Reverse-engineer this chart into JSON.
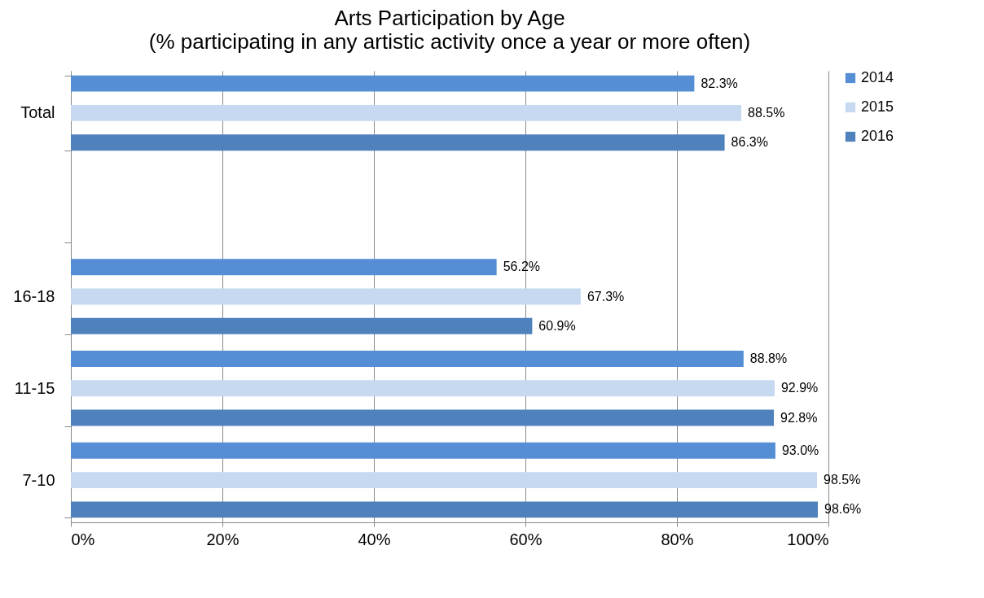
{
  "chart_data": {
    "type": "bar",
    "orientation": "horizontal",
    "title": "Arts Participation by Age",
    "subtitle": "(% participating in any artistic activity once a year or more often)",
    "categories": [
      "Total",
      null,
      "16-18",
      "11-15",
      "7-10"
    ],
    "series": [
      {
        "name": "2014",
        "color": "#558ed5",
        "values": [
          82.3,
          null,
          56.2,
          88.8,
          93.0
        ],
        "value_labels": [
          "82.3%",
          null,
          "56.2%",
          "88.8%",
          "93.0%"
        ]
      },
      {
        "name": "2015",
        "color": "#c6d9f1",
        "values": [
          88.5,
          null,
          67.3,
          92.9,
          98.5
        ],
        "value_labels": [
          "88.5%",
          null,
          "67.3%",
          "92.9%",
          "98.5%"
        ]
      },
      {
        "name": "2016",
        "color": "#4f81bd",
        "values": [
          86.3,
          null,
          60.9,
          92.8,
          98.6
        ],
        "value_labels": [
          "86.3%",
          null,
          "60.9%",
          "92.8%",
          "98.6%"
        ]
      }
    ],
    "xlim": [
      0,
      100
    ],
    "xticks": [
      {
        "value": 0,
        "label": "0%"
      },
      {
        "value": 20,
        "label": "20%"
      },
      {
        "value": 40,
        "label": "40%"
      },
      {
        "value": 60,
        "label": "60%"
      },
      {
        "value": 80,
        "label": "80%"
      },
      {
        "value": 100,
        "label": "100%"
      }
    ],
    "grid": "x",
    "legend": "right"
  }
}
